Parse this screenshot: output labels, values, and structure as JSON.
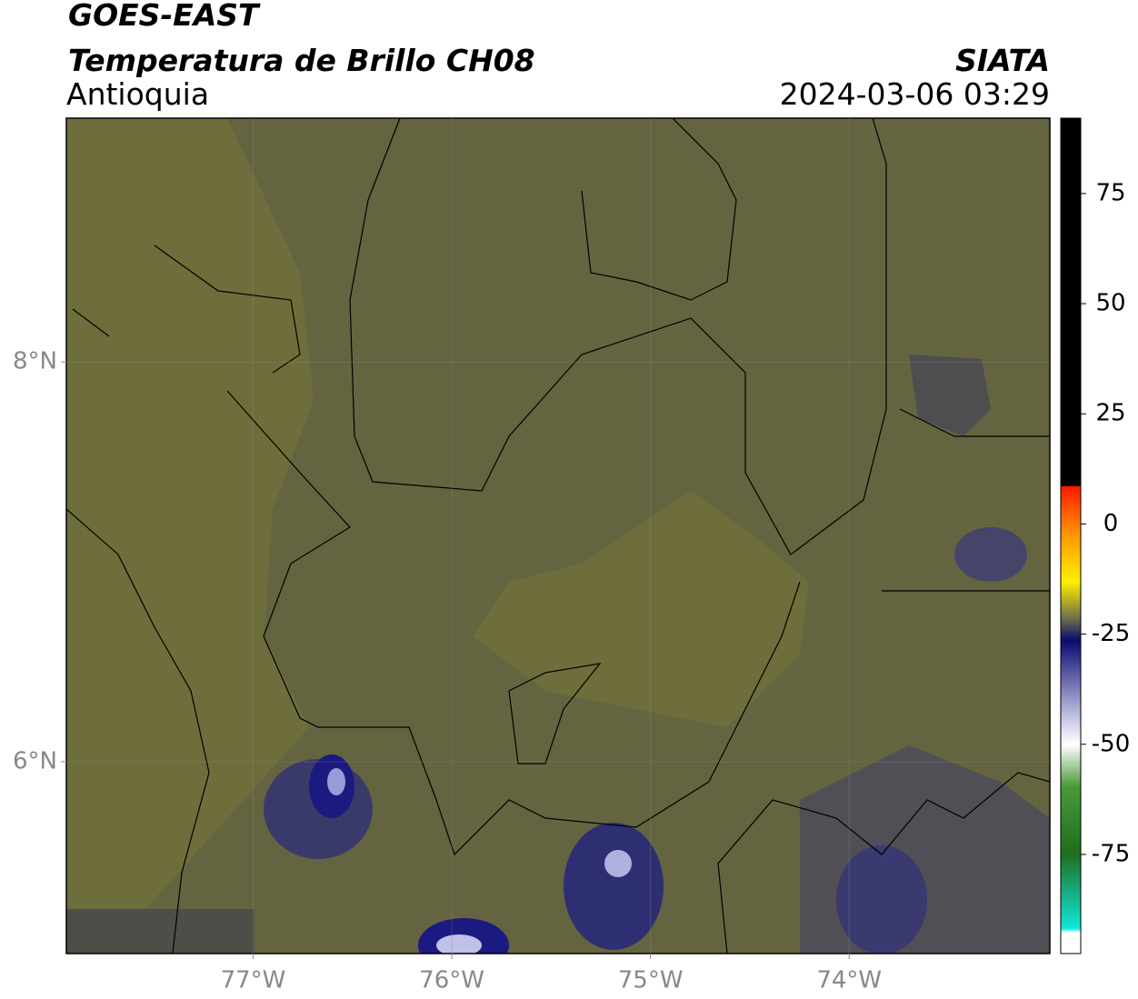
{
  "header": {
    "satellite": "GOES-EAST",
    "product": "Temperatura de Brillo CH08",
    "region": "Antioquia",
    "source": "SIATA",
    "datetime": "2024-03-06 03:29"
  },
  "map": {
    "xlim": [
      -77.94,
      -72.99
    ],
    "ylim": [
      5.04,
      9.22
    ],
    "xticks": [
      {
        "value": -77,
        "label": "77°W"
      },
      {
        "value": -76,
        "label": "76°W"
      },
      {
        "value": -75,
        "label": "75°W"
      },
      {
        "value": -74,
        "label": "74°W"
      }
    ],
    "yticks": [
      {
        "value": 6,
        "label": "6°N"
      },
      {
        "value": 8,
        "label": "8°N"
      }
    ],
    "grid": true
  },
  "colorbar": {
    "lim": [
      -97.5,
      92.1
    ],
    "ticks": [
      -75,
      -50,
      -25,
      0,
      25,
      50,
      75
    ]
  }
}
